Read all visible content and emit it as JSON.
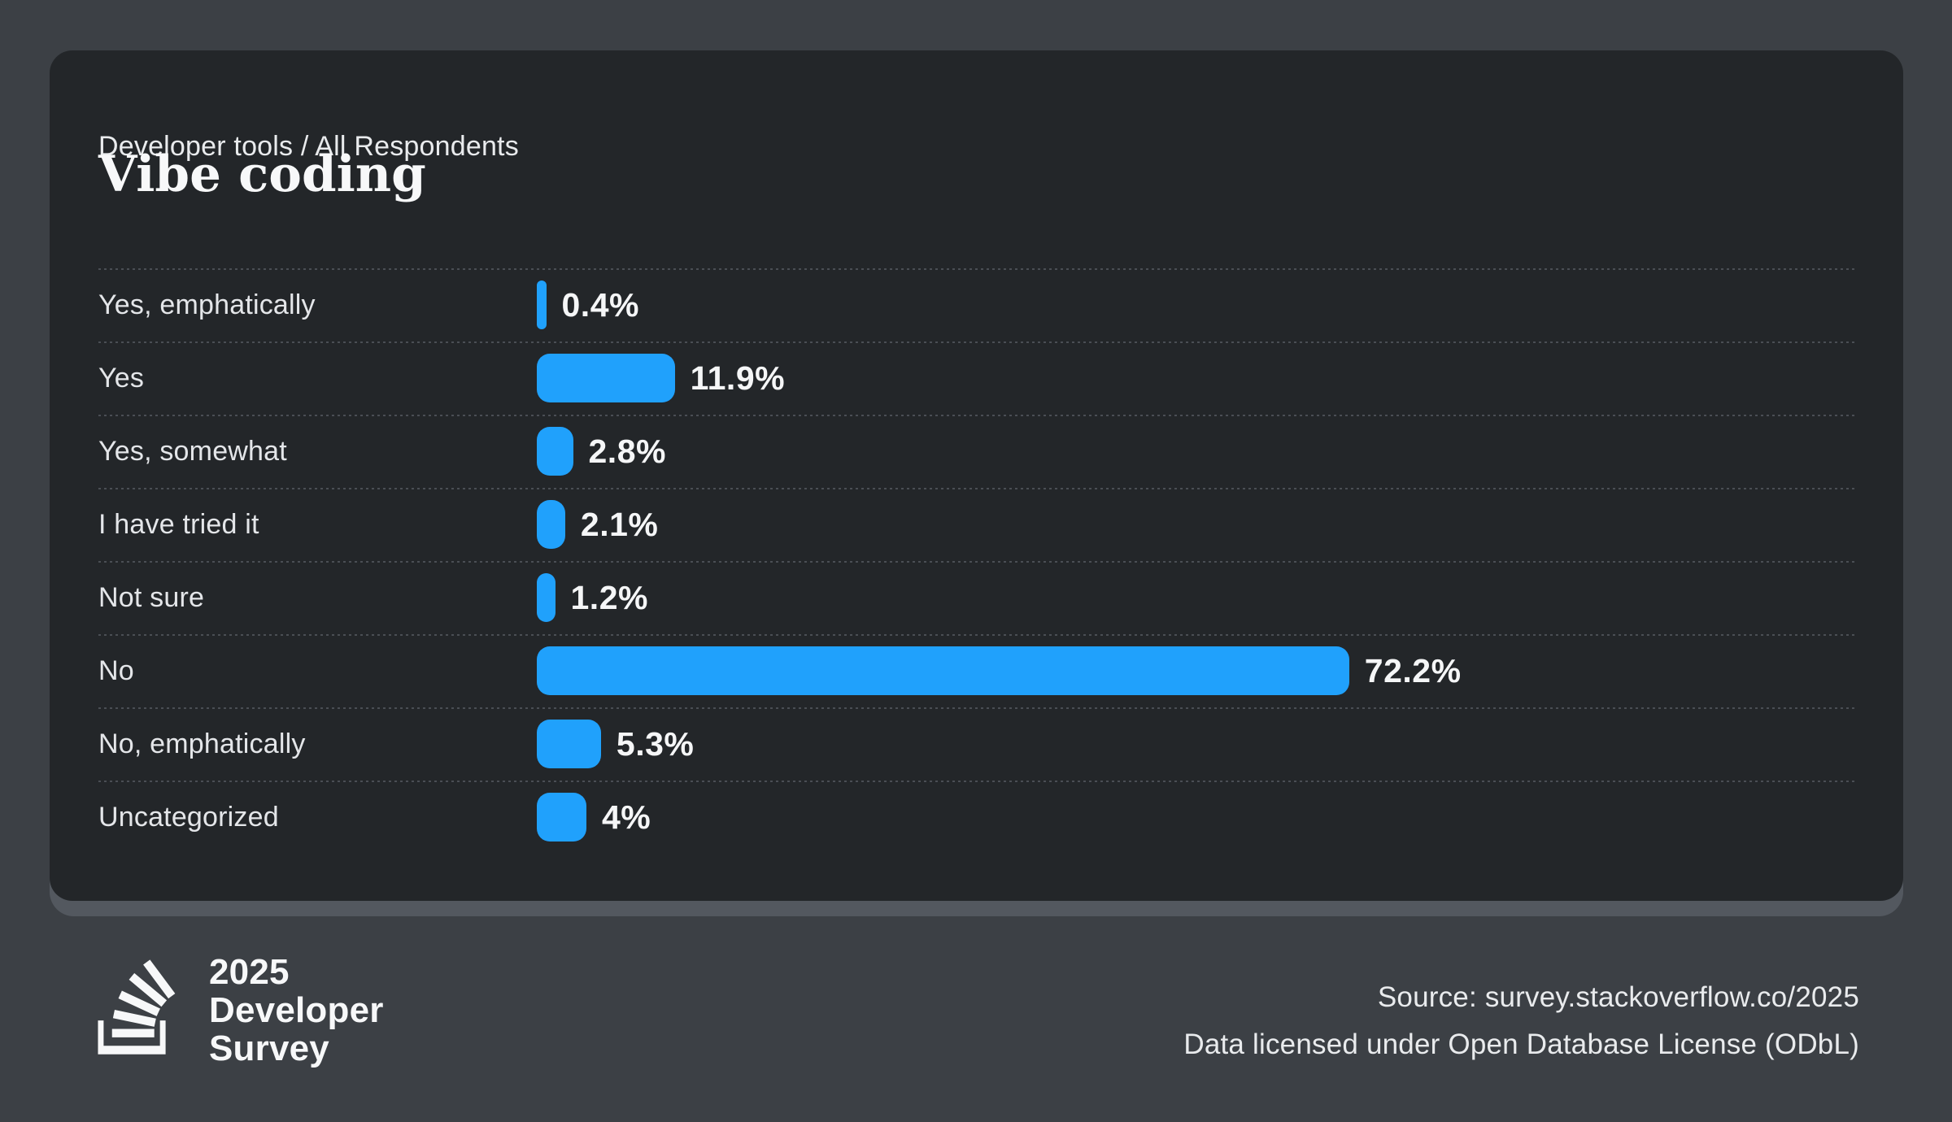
{
  "header": {
    "breadcrumb": "Developer tools / All Respondents",
    "title": "Vibe coding"
  },
  "chart_data": {
    "type": "bar",
    "orientation": "horizontal",
    "title": "Vibe coding",
    "subtitle": "Developer tools / All Respondents",
    "categories": [
      "Yes, emphatically",
      "Yes",
      "Yes, somewhat",
      "I have tried it",
      "Not sure",
      "No",
      "No, emphatically",
      "Uncategorized"
    ],
    "values": [
      0.4,
      11.9,
      2.8,
      2.1,
      1.2,
      72.2,
      5.3,
      4
    ],
    "value_labels": [
      "0.4%",
      "11.9%",
      "2.8%",
      "2.1%",
      "1.2%",
      "72.2%",
      "5.3%",
      "4%"
    ],
    "unit": "%",
    "xlim": [
      0,
      75
    ],
    "grid": false,
    "legend": "none",
    "bar_color": "#20A1FC",
    "row_dividers": "dotted"
  },
  "footer": {
    "logo_icon": "stackoverflow-logo",
    "brand_lines": [
      "2025",
      "Developer",
      "Survey"
    ],
    "source_line1": "Source: survey.stackoverflow.co/2025",
    "source_line2": "Data licensed under Open Database License (ODbL)"
  },
  "colors": {
    "page-bg": "#3C4045",
    "card-bg": "#232629",
    "shadow-bg": "#53585F",
    "accent": "#20A1FC",
    "label": "#E4E6E9",
    "value": "#F5F6F7",
    "divider": "#4A4E54",
    "text-soft": "#E9EBED",
    "text-bright": "#F7F8F9"
  }
}
